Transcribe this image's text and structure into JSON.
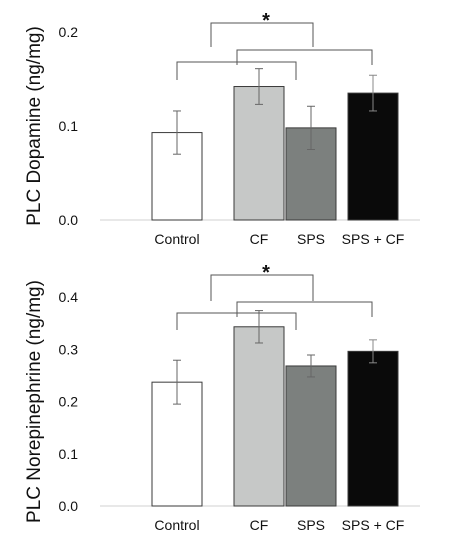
{
  "chart_data": [
    {
      "type": "bar",
      "ylabel": "PLC Dopamine (ng/mg)",
      "categories": [
        "Control",
        "CF",
        "SPS",
        "SPS + CF"
      ],
      "values": [
        0.093,
        0.142,
        0.098,
        0.135
      ],
      "errors": [
        0.023,
        0.019,
        0.023,
        0.019
      ],
      "colors": [
        "#ffffff",
        "#c6c8c7",
        "#7c807e",
        "#0a0a0a"
      ],
      "ylim": [
        0,
        0.2
      ],
      "yticks": [
        "0.0",
        "0.1",
        "0.2"
      ],
      "significance": "*"
    },
    {
      "type": "bar",
      "ylabel": "PLC Norepinephrine (ng/mg)",
      "categories": [
        "Control",
        "CF",
        "SPS",
        "SPS + CF"
      ],
      "values": [
        0.237,
        0.343,
        0.268,
        0.296
      ],
      "errors": [
        0.042,
        0.031,
        0.021,
        0.022
      ],
      "colors": [
        "#ffffff",
        "#c6c8c7",
        "#7c807e",
        "#0a0a0a"
      ],
      "ylim": [
        0,
        0.4
      ],
      "yticks": [
        "0.0",
        "0.1",
        "0.2",
        "0.3",
        "0.4"
      ],
      "significance": "*"
    }
  ]
}
